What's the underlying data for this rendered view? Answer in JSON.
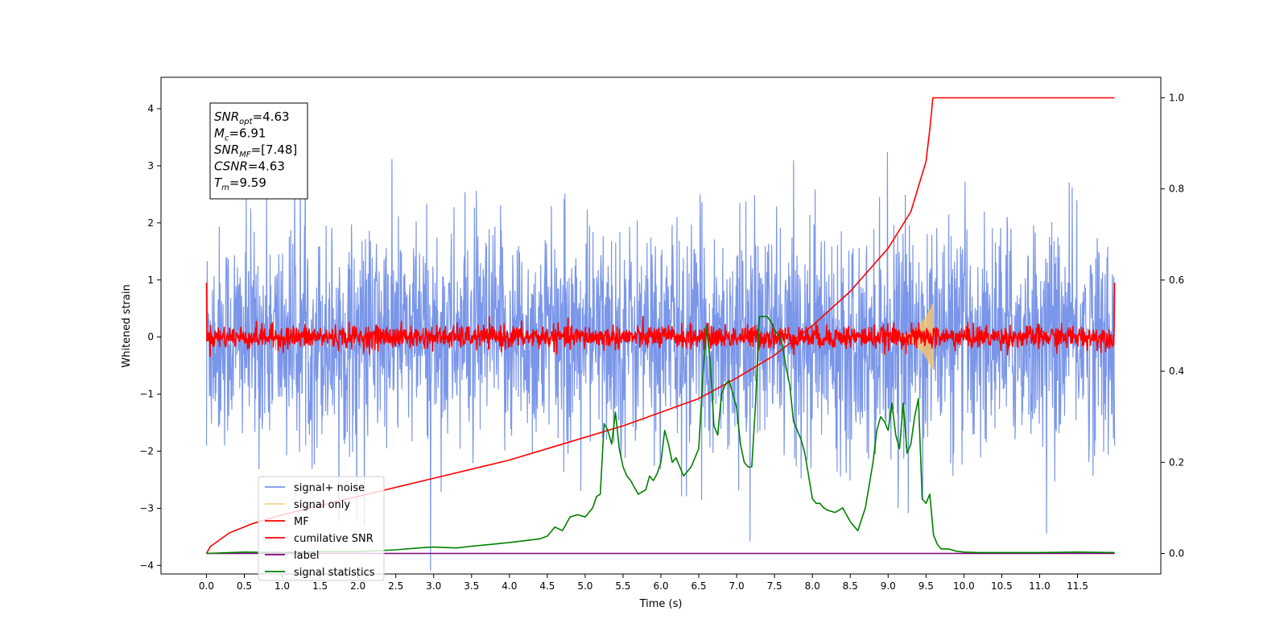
{
  "chart_data": {
    "type": "line",
    "xlabel": "Time (s)",
    "ylabel": "Whitened strain",
    "xlim": [
      -0.6,
      12.6
    ],
    "ylim": [
      -4.15,
      4.55
    ],
    "y2lim": [
      -0.045,
      1.045
    ],
    "x_ticks": [
      0.0,
      0.5,
      1.0,
      1.5,
      2.0,
      2.5,
      3.0,
      3.5,
      4.0,
      4.5,
      5.0,
      5.5,
      6.0,
      6.5,
      7.0,
      7.5,
      8.0,
      8.5,
      9.0,
      9.5,
      10.0,
      10.5,
      11.0,
      11.5
    ],
    "x_tick_labels": [
      "0.0",
      "0.5",
      "1.0",
      "1.5",
      "2.0",
      "2.5",
      "3.0",
      "3.5",
      "4.0",
      "4.5",
      "5.0",
      "5.5",
      "6.0",
      "6.5",
      "7.0",
      "7.5",
      "8.0",
      "8.5",
      "9.0",
      "9.5",
      "10.0",
      "10.5",
      "11.0",
      "11.5"
    ],
    "y_ticks": [
      -4,
      -3,
      -2,
      -1,
      0,
      1,
      2,
      3,
      4
    ],
    "y_tick_labels": [
      "−4",
      "−3",
      "−2",
      "−1",
      "0",
      "1",
      "2",
      "3",
      "4"
    ],
    "y2_ticks": [
      0.0,
      0.2,
      0.4,
      0.6,
      0.8,
      1.0
    ],
    "y2_tick_labels": [
      "0.0",
      "0.2",
      "0.4",
      "0.6",
      "0.8",
      "1.0"
    ],
    "grid": false,
    "legend_placement": "lower-left",
    "annotation": {
      "lines": [
        {
          "sym": "SNR",
          "sub": "opt",
          "rest": "=4.63"
        },
        {
          "sym": "M",
          "sub": "c",
          "rest": "=6.91"
        },
        {
          "sym": "SNR",
          "sub": "MF",
          "rest": "=[7.48]"
        },
        {
          "sym": "CSNR",
          "sub": "",
          "rest": "=4.63"
        },
        {
          "sym": "T",
          "sub": "m",
          "rest": "=9.59"
        }
      ]
    },
    "series": [
      {
        "name": "signal+ noise",
        "color": "#4169e1",
        "opacity": 0.7,
        "axis": "left",
        "kind": "noise",
        "x_range": [
          0,
          11.99
        ],
        "std": 0.95
      },
      {
        "name": "signal only",
        "color": "#f5c76b",
        "opacity": 0.8,
        "axis": "left",
        "kind": "chirp",
        "x_range": [
          9.0,
          9.59
        ],
        "peak": 0.6
      },
      {
        "name": "MF",
        "color": "#ff0000",
        "axis": "left",
        "kind": "noise",
        "x_range": [
          0,
          11.99
        ],
        "std": 0.1
      },
      {
        "name": "cumilative SNR",
        "color": "#ff0000",
        "axis": "right",
        "x": [
          0.0,
          0.05,
          0.3,
          0.6,
          1.0,
          1.5,
          2.0,
          2.5,
          3.0,
          3.5,
          4.0,
          4.5,
          5.0,
          5.5,
          6.0,
          6.5,
          7.0,
          7.5,
          8.0,
          8.5,
          9.0,
          9.3,
          9.5,
          9.55,
          9.58,
          9.59,
          11.99
        ],
        "y": [
          0.0,
          0.015,
          0.045,
          0.065,
          0.085,
          0.105,
          0.125,
          0.145,
          0.165,
          0.185,
          0.205,
          0.23,
          0.255,
          0.28,
          0.31,
          0.34,
          0.385,
          0.435,
          0.5,
          0.575,
          0.67,
          0.75,
          0.86,
          0.93,
          0.98,
          1.0,
          1.0
        ]
      },
      {
        "name": "label",
        "color": "#800080",
        "axis": "right",
        "x": [
          0.0,
          11.99
        ],
        "y": [
          0.0,
          0.0
        ]
      },
      {
        "name": "signal statistics",
        "color": "#008000",
        "axis": "right",
        "x": [
          0.0,
          0.5,
          1.0,
          1.5,
          2.0,
          2.5,
          2.8,
          3.0,
          3.3,
          3.5,
          3.7,
          4.0,
          4.2,
          4.4,
          4.5,
          4.6,
          4.7,
          4.8,
          4.9,
          5.0,
          5.1,
          5.15,
          5.2,
          5.25,
          5.3,
          5.35,
          5.4,
          5.45,
          5.5,
          5.55,
          5.6,
          5.7,
          5.8,
          5.85,
          5.9,
          5.95,
          6.0,
          6.05,
          6.1,
          6.15,
          6.2,
          6.3,
          6.4,
          6.5,
          6.55,
          6.6,
          6.65,
          6.7,
          6.75,
          6.8,
          6.85,
          6.9,
          6.95,
          7.0,
          7.05,
          7.1,
          7.15,
          7.2,
          7.25,
          7.3,
          7.35,
          7.4,
          7.45,
          7.5,
          7.55,
          7.6,
          7.65,
          7.7,
          7.75,
          7.8,
          7.85,
          7.9,
          7.95,
          8.0,
          8.05,
          8.1,
          8.15,
          8.2,
          8.3,
          8.4,
          8.5,
          8.55,
          8.6,
          8.7,
          8.8,
          8.85,
          8.9,
          8.95,
          9.0,
          9.05,
          9.1,
          9.15,
          9.2,
          9.25,
          9.3,
          9.35,
          9.4,
          9.45,
          9.5,
          9.55,
          9.6,
          9.65,
          9.7,
          9.8,
          9.9,
          10.0,
          10.2,
          10.5,
          11.0,
          11.5,
          11.99
        ],
        "y": [
          0.0,
          0.003,
          0.002,
          0.004,
          0.004,
          0.008,
          0.012,
          0.014,
          0.012,
          0.016,
          0.019,
          0.024,
          0.028,
          0.032,
          0.038,
          0.058,
          0.05,
          0.08,
          0.085,
          0.08,
          0.1,
          0.125,
          0.13,
          0.285,
          0.27,
          0.24,
          0.31,
          0.23,
          0.19,
          0.17,
          0.16,
          0.13,
          0.14,
          0.17,
          0.16,
          0.175,
          0.2,
          0.27,
          0.24,
          0.2,
          0.21,
          0.17,
          0.19,
          0.23,
          0.38,
          0.5,
          0.42,
          0.28,
          0.26,
          0.35,
          0.37,
          0.38,
          0.35,
          0.32,
          0.24,
          0.2,
          0.19,
          0.19,
          0.33,
          0.52,
          0.52,
          0.52,
          0.51,
          0.49,
          0.48,
          0.46,
          0.41,
          0.37,
          0.29,
          0.27,
          0.25,
          0.22,
          0.17,
          0.12,
          0.11,
          0.11,
          0.1,
          0.095,
          0.09,
          0.1,
          0.07,
          0.06,
          0.05,
          0.1,
          0.2,
          0.27,
          0.3,
          0.29,
          0.27,
          0.33,
          0.26,
          0.23,
          0.33,
          0.22,
          0.24,
          0.3,
          0.34,
          0.12,
          0.11,
          0.13,
          0.04,
          0.02,
          0.01,
          0.01,
          0.005,
          0.003,
          0.002,
          0.002,
          0.002,
          0.003,
          0.002
        ]
      }
    ]
  }
}
